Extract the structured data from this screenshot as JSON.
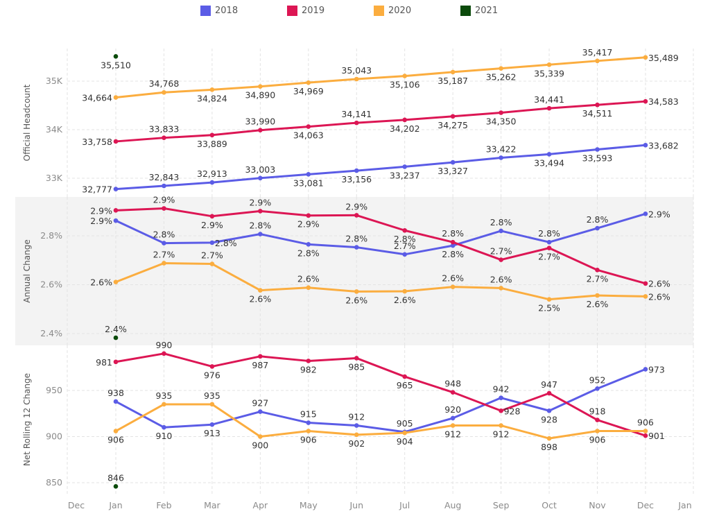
{
  "legend": [
    {
      "label": "2018",
      "color": "#5b5ce6"
    },
    {
      "label": "2019",
      "color": "#dc1654"
    },
    {
      "label": "2020",
      "color": "#fbad3f"
    },
    {
      "label": "2021",
      "color": "#0b4a0b"
    }
  ],
  "chart_data": [
    {
      "type": "line",
      "title": "",
      "ylabel": "Official Headcount",
      "xlabel": "",
      "x_tick_labels": [
        "Dec",
        "Jan",
        "Feb",
        "Mar",
        "Apr",
        "May",
        "Jun",
        "Jul",
        "Aug",
        "Sep",
        "Oct",
        "Nov",
        "Dec",
        "Jan"
      ],
      "categories": [
        "Jan",
        "Feb",
        "Mar",
        "Apr",
        "May",
        "Jun",
        "Jul",
        "Aug",
        "Sep",
        "Oct",
        "Nov",
        "Dec"
      ],
      "ylim": [
        32600,
        35700
      ],
      "yticks": [
        33000,
        34000,
        35000
      ],
      "ytick_labels": [
        "33K",
        "34K",
        "35K"
      ],
      "grid": true,
      "shaded": false,
      "series": [
        {
          "name": "2018",
          "values": [
            32777,
            32843,
            32913,
            33003,
            33081,
            33156,
            33237,
            33327,
            33422,
            33494,
            33593,
            33682
          ],
          "labels": [
            "32,777",
            "32,843",
            "32,913",
            "33,003",
            "33,081",
            "33,156",
            "33,237",
            "33,327",
            "33,422",
            "33,494",
            "33,593",
            "33,682"
          ]
        },
        {
          "name": "2019",
          "values": [
            33758,
            33833,
            33889,
            33990,
            34063,
            34141,
            34202,
            34275,
            34350,
            34441,
            34511,
            34583
          ],
          "labels": [
            "33,758",
            "33,833",
            "33,889",
            "33,990",
            "34,063",
            "34,141",
            "34,202",
            "34,275",
            "34,350",
            "34,441",
            "34,511",
            "34,583"
          ]
        },
        {
          "name": "2020",
          "values": [
            34664,
            34768,
            34824,
            34890,
            34969,
            35043,
            35106,
            35187,
            35262,
            35339,
            35417,
            35489
          ],
          "labels": [
            "34,664",
            "34,768",
            "34,824",
            "34,890",
            "34,969",
            "35,043",
            "35,106",
            "35,187",
            "35,262",
            "35,339",
            "35,417",
            "35,489"
          ]
        },
        {
          "name": "2021",
          "values": [
            35510
          ],
          "labels": [
            "35,510"
          ]
        }
      ]
    },
    {
      "type": "line",
      "title": "",
      "ylabel": "Annual Change",
      "xlabel": "",
      "categories": [
        "Jan",
        "Feb",
        "Mar",
        "Apr",
        "May",
        "Jun",
        "Jul",
        "Aug",
        "Sep",
        "Oct",
        "Nov",
        "Dec"
      ],
      "ylim": [
        2.35,
        2.955
      ],
      "yticks": [
        2.4,
        2.6,
        2.8
      ],
      "ytick_labels": [
        "2.4%",
        "2.6%",
        "2.8%"
      ],
      "grid": true,
      "shaded": true,
      "series": [
        {
          "name": "2018",
          "values": [
            2.862,
            2.77,
            2.772,
            2.807,
            2.765,
            2.753,
            2.724,
            2.76,
            2.82,
            2.774,
            2.831,
            2.89
          ],
          "labels": [
            "2.9%",
            "2.8%",
            "2.8%",
            "2.8%",
            "2.8%",
            "2.8%",
            "2.7%",
            "2.8%",
            "2.8%",
            "2.8%",
            "2.8%",
            "2.9%"
          ]
        },
        {
          "name": "2019",
          "values": [
            2.904,
            2.912,
            2.88,
            2.901,
            2.883,
            2.884,
            2.822,
            2.774,
            2.702,
            2.75,
            2.66,
            2.605
          ],
          "labels": [
            "2.9%",
            "2.9%",
            "2.9%",
            "2.9%",
            "2.9%",
            "2.9%",
            "2.8%",
            "2.8%",
            "2.7%",
            "2.7%",
            "2.7%",
            "2.6%"
          ]
        },
        {
          "name": "2020",
          "values": [
            2.611,
            2.688,
            2.685,
            2.577,
            2.588,
            2.572,
            2.573,
            2.591,
            2.586,
            2.54,
            2.556,
            2.552
          ],
          "labels": [
            "2.6%",
            "2.7%",
            "2.7%",
            "2.6%",
            "2.6%",
            "2.6%",
            "2.6%",
            "2.6%",
            "2.6%",
            "2.5%",
            "2.6%",
            "2.6%"
          ]
        },
        {
          "name": "2021",
          "values": [
            2.383
          ],
          "labels": [
            "2.4%"
          ]
        }
      ]
    },
    {
      "type": "line",
      "title": "",
      "ylabel": "Net Rolling 12 Change",
      "xlabel": "",
      "categories": [
        "Jan",
        "Feb",
        "Mar",
        "Apr",
        "May",
        "Jun",
        "Jul",
        "Aug",
        "Sep",
        "Oct",
        "Nov",
        "Dec"
      ],
      "ylim": [
        835,
        1000
      ],
      "yticks": [
        850,
        900,
        950
      ],
      "ytick_labels": [
        "850",
        "900",
        "950"
      ],
      "grid": true,
      "shaded": false,
      "series": [
        {
          "name": "2018",
          "values": [
            938,
            910,
            913,
            927,
            915,
            912,
            905,
            920,
            942,
            928,
            952,
            973
          ],
          "labels": [
            "938",
            "910",
            "913",
            "927",
            "915",
            "912",
            "905",
            "920",
            "942",
            "928",
            "952",
            "973"
          ]
        },
        {
          "name": "2019",
          "values": [
            981,
            990,
            976,
            987,
            982,
            985,
            965,
            948,
            928,
            947,
            918,
            901
          ],
          "labels": [
            "981",
            "990",
            "976",
            "987",
            "982",
            "985",
            "965",
            "948",
            "928",
            "947",
            "918",
            "901"
          ]
        },
        {
          "name": "2020",
          "values": [
            906,
            935,
            935,
            900,
            906,
            902,
            904,
            912,
            912,
            898,
            906,
            906
          ],
          "labels": [
            "906",
            "935",
            "935",
            "900",
            "906",
            "902",
            "904",
            "912",
            "912",
            "898",
            "906",
            "906"
          ]
        },
        {
          "name": "2021",
          "values": [
            846
          ],
          "labels": [
            "846"
          ]
        }
      ]
    }
  ]
}
